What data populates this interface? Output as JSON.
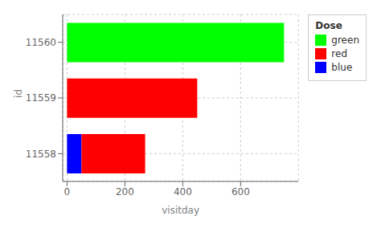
{
  "chart_data": {
    "type": "bar",
    "orientation": "horizontal",
    "stacked": true,
    "categories": [
      "11558",
      "11559",
      "11560"
    ],
    "series": [
      {
        "name": "green",
        "color": "#00FF00",
        "values": [
          null,
          null,
          750
        ]
      },
      {
        "name": "red",
        "color": "#FF0000",
        "values": [
          220,
          450,
          null
        ]
      },
      {
        "name": "blue",
        "color": "#0000FF",
        "values": [
          50,
          null,
          null
        ]
      }
    ],
    "xlabel": "visitday",
    "ylabel": "id",
    "legend_title": "Dose",
    "xlim": [
      -15,
      800
    ],
    "xticks": [
      0,
      200,
      400,
      600
    ],
    "grid": true,
    "legend": "right"
  }
}
